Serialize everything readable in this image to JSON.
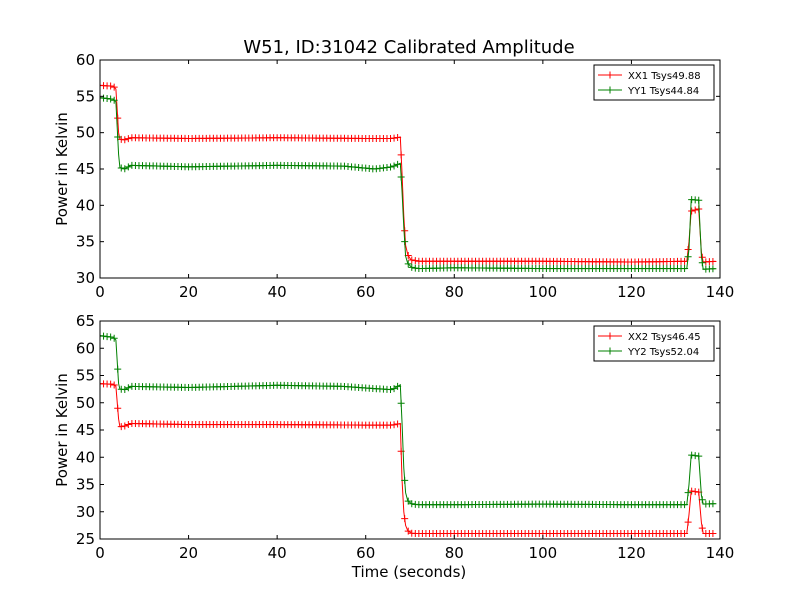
{
  "chart_data": {
    "type": "line",
    "title": "W51, ID:31042 Calibrated Amplitude",
    "xlabel": "Time (seconds)",
    "grid": false,
    "legend_position": "top-right",
    "panels": [
      {
        "ylabel": "Power in Kelvin",
        "xlim": [
          0,
          140
        ],
        "ylim": [
          30,
          60
        ],
        "xticks": [
          "0",
          "20",
          "40",
          "60",
          "80",
          "100",
          "120",
          "140"
        ],
        "yticks": [
          "30",
          "35",
          "40",
          "45",
          "50",
          "55",
          "60"
        ],
        "series": [
          {
            "name": "XX1 Tsys49.88",
            "color": "#ff0000",
            "points": [
              [
                0.0,
                56.5
              ],
              [
                3.0,
                56.4
              ],
              [
                3.6,
                56.0
              ],
              [
                4.2,
                50.0
              ],
              [
                4.5,
                49.1
              ],
              [
                5.5,
                49.0
              ],
              [
                7.0,
                49.3
              ],
              [
                20.0,
                49.2
              ],
              [
                40.0,
                49.3
              ],
              [
                60.0,
                49.2
              ],
              [
                66.0,
                49.2
              ],
              [
                67.8,
                49.4
              ],
              [
                68.2,
                44.5
              ],
              [
                68.6,
                38.5
              ],
              [
                69.0,
                34.5
              ],
              [
                69.5,
                33.2
              ],
              [
                70.2,
                32.5
              ],
              [
                72.0,
                32.3
              ],
              [
                80.0,
                32.3
              ],
              [
                100.0,
                32.3
              ],
              [
                120.0,
                32.2
              ],
              [
                132.5,
                32.3
              ],
              [
                133.0,
                35.0
              ],
              [
                133.5,
                39.2
              ],
              [
                135.2,
                39.5
              ],
              [
                135.8,
                33.5
              ],
              [
                136.2,
                32.2
              ],
              [
                139.0,
                32.3
              ]
            ]
          },
          {
            "name": "YY1 Tsys44.84",
            "color": "#008000",
            "points": [
              [
                0.0,
                54.8
              ],
              [
                3.0,
                54.6
              ],
              [
                3.6,
                54.2
              ],
              [
                4.2,
                47.0
              ],
              [
                4.5,
                45.2
              ],
              [
                5.5,
                45.0
              ],
              [
                7.0,
                45.5
              ],
              [
                20.0,
                45.3
              ],
              [
                40.0,
                45.5
              ],
              [
                55.0,
                45.4
              ],
              [
                62.0,
                45.0
              ],
              [
                66.0,
                45.3
              ],
              [
                67.8,
                45.8
              ],
              [
                68.2,
                42.0
              ],
              [
                68.6,
                37.0
              ],
              [
                69.0,
                33.0
              ],
              [
                69.5,
                32.0
              ],
              [
                70.5,
                31.4
              ],
              [
                72.0,
                31.3
              ],
              [
                80.0,
                31.4
              ],
              [
                100.0,
                31.3
              ],
              [
                120.0,
                31.3
              ],
              [
                132.5,
                31.3
              ],
              [
                133.0,
                34.0
              ],
              [
                133.5,
                40.8
              ],
              [
                135.2,
                40.7
              ],
              [
                135.8,
                33.0
              ],
              [
                136.2,
                31.2
              ],
              [
                139.0,
                31.3
              ]
            ]
          }
        ]
      },
      {
        "ylabel": "Power in Kelvin",
        "xlim": [
          0,
          140
        ],
        "ylim": [
          25,
          65
        ],
        "xticks": [
          "0",
          "20",
          "40",
          "60",
          "80",
          "100",
          "120",
          "140"
        ],
        "yticks": [
          "25",
          "30",
          "35",
          "40",
          "45",
          "50",
          "55",
          "60",
          "65"
        ],
        "series": [
          {
            "name": "XX2 Tsys46.45",
            "color": "#ff0000",
            "points": [
              [
                0.0,
                53.5
              ],
              [
                3.0,
                53.4
              ],
              [
                3.6,
                53.0
              ],
              [
                4.2,
                47.0
              ],
              [
                4.5,
                45.6
              ],
              [
                5.5,
                45.7
              ],
              [
                7.0,
                46.2
              ],
              [
                20.0,
                46.0
              ],
              [
                40.0,
                46.0
              ],
              [
                60.0,
                45.9
              ],
              [
                66.0,
                45.9
              ],
              [
                67.8,
                46.2
              ],
              [
                68.2,
                36.0
              ],
              [
                68.6,
                30.0
              ],
              [
                69.0,
                27.5
              ],
              [
                69.5,
                26.5
              ],
              [
                70.5,
                26.0
              ],
              [
                80.0,
                26.0
              ],
              [
                100.0,
                26.0
              ],
              [
                120.0,
                26.0
              ],
              [
                132.5,
                26.0
              ],
              [
                133.0,
                29.5
              ],
              [
                133.5,
                33.8
              ],
              [
                135.2,
                33.6
              ],
              [
                135.8,
                28.0
              ],
              [
                136.2,
                26.0
              ],
              [
                139.0,
                26.0
              ]
            ]
          },
          {
            "name": "YY2 Tsys52.04",
            "color": "#008000",
            "points": [
              [
                0.0,
                62.3
              ],
              [
                3.0,
                62.0
              ],
              [
                3.6,
                61.5
              ],
              [
                4.2,
                53.5
              ],
              [
                4.5,
                52.5
              ],
              [
                5.5,
                52.4
              ],
              [
                7.0,
                53.0
              ],
              [
                20.0,
                52.8
              ],
              [
                40.0,
                53.2
              ],
              [
                55.0,
                53.0
              ],
              [
                62.0,
                52.6
              ],
              [
                66.0,
                52.4
              ],
              [
                67.8,
                53.3
              ],
              [
                68.2,
                46.5
              ],
              [
                68.6,
                38.0
              ],
              [
                69.0,
                33.5
              ],
              [
                69.5,
                32.0
              ],
              [
                70.5,
                31.4
              ],
              [
                72.0,
                31.3
              ],
              [
                80.0,
                31.3
              ],
              [
                100.0,
                31.4
              ],
              [
                120.0,
                31.3
              ],
              [
                132.5,
                31.3
              ],
              [
                133.0,
                35.0
              ],
              [
                133.5,
                40.4
              ],
              [
                135.2,
                40.2
              ],
              [
                135.8,
                33.0
              ],
              [
                136.2,
                31.4
              ],
              [
                139.0,
                31.5
              ]
            ]
          }
        ]
      }
    ]
  }
}
